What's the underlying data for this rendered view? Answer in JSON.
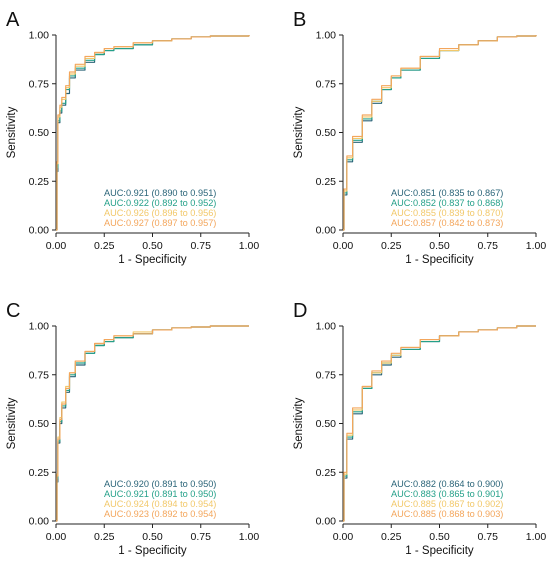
{
  "colors": {
    "series": [
      "#2a6478",
      "#24a089",
      "#f2c86a",
      "#f3a65c"
    ],
    "axis": "#222222",
    "background": "#ffffff"
  },
  "chart_data": [
    {
      "type": "line",
      "panel": "A",
      "xlabel": "1 - Specificity",
      "ylabel": "Sensitivity",
      "xlim": [
        0,
        1
      ],
      "ylim": [
        0,
        1
      ],
      "xticks": [
        "0.00",
        "0.25",
        "0.50",
        "0.75",
        "1.00"
      ],
      "yticks": [
        "0.00",
        "0.25",
        "0.50",
        "0.75",
        "1.00"
      ],
      "grid": false,
      "legend_placement": "bottom-right",
      "annotations": [
        "AUC:0.921 (0.890 to 0.951)",
        "AUC:0.922 (0.892 to 0.952)",
        "AUC:0.926 (0.896 to 0.956)",
        "AUC:0.927 (0.897 to 0.957)"
      ],
      "series": [
        {
          "x": [
            0,
            0.005,
            0.01,
            0.02,
            0.03,
            0.05,
            0.07,
            0.1,
            0.15,
            0.2,
            0.25,
            0.3,
            0.4,
            0.5,
            0.6,
            0.7,
            0.8,
            1.0
          ],
          "y": [
            0,
            0.3,
            0.55,
            0.6,
            0.64,
            0.7,
            0.78,
            0.82,
            0.86,
            0.9,
            0.92,
            0.93,
            0.95,
            0.97,
            0.98,
            0.99,
            0.995,
            1.0
          ]
        },
        {
          "x": [
            0,
            0.005,
            0.01,
            0.02,
            0.03,
            0.05,
            0.07,
            0.1,
            0.15,
            0.2,
            0.25,
            0.3,
            0.4,
            0.5,
            0.6,
            0.7,
            0.8,
            1.0
          ],
          "y": [
            0,
            0.32,
            0.56,
            0.61,
            0.65,
            0.72,
            0.79,
            0.83,
            0.87,
            0.9,
            0.92,
            0.93,
            0.95,
            0.97,
            0.98,
            0.99,
            0.995,
            1.0
          ]
        },
        {
          "x": [
            0,
            0.005,
            0.01,
            0.02,
            0.03,
            0.05,
            0.07,
            0.1,
            0.15,
            0.2,
            0.25,
            0.3,
            0.4,
            0.5,
            0.6,
            0.7,
            0.8,
            1.0
          ],
          "y": [
            0,
            0.34,
            0.58,
            0.63,
            0.67,
            0.73,
            0.8,
            0.84,
            0.88,
            0.91,
            0.93,
            0.94,
            0.96,
            0.97,
            0.98,
            0.99,
            0.995,
            1.0
          ]
        },
        {
          "x": [
            0,
            0.005,
            0.01,
            0.02,
            0.03,
            0.05,
            0.07,
            0.1,
            0.15,
            0.2,
            0.25,
            0.3,
            0.4,
            0.5,
            0.6,
            0.7,
            0.8,
            1.0
          ],
          "y": [
            0,
            0.35,
            0.59,
            0.64,
            0.68,
            0.74,
            0.81,
            0.85,
            0.89,
            0.91,
            0.93,
            0.94,
            0.96,
            0.97,
            0.98,
            0.99,
            0.995,
            1.0
          ]
        }
      ]
    },
    {
      "type": "line",
      "panel": "B",
      "xlabel": "1 - Specificity",
      "ylabel": "Sensitivity",
      "xlim": [
        0,
        1
      ],
      "ylim": [
        0,
        1
      ],
      "xticks": [
        "0.00",
        "0.25",
        "0.50",
        "0.75",
        "1.00"
      ],
      "yticks": [
        "0.00",
        "0.25",
        "0.50",
        "0.75",
        "1.00"
      ],
      "grid": false,
      "legend_placement": "bottom-right",
      "annotations": [
        "AUC:0.851 (0.835 to 0.867)",
        "AUC:0.852 (0.837 to 0.868)",
        "AUC:0.855 (0.839 to 0.870)",
        "AUC:0.857 (0.842 to 0.873)"
      ],
      "series": [
        {
          "x": [
            0,
            0.005,
            0.02,
            0.05,
            0.1,
            0.15,
            0.2,
            0.25,
            0.3,
            0.4,
            0.5,
            0.6,
            0.7,
            0.8,
            0.9,
            1.0
          ],
          "y": [
            0,
            0.18,
            0.35,
            0.45,
            0.56,
            0.65,
            0.72,
            0.78,
            0.82,
            0.88,
            0.92,
            0.95,
            0.97,
            0.99,
            0.995,
            1.0
          ]
        },
        {
          "x": [
            0,
            0.005,
            0.02,
            0.05,
            0.1,
            0.15,
            0.2,
            0.25,
            0.3,
            0.4,
            0.5,
            0.6,
            0.7,
            0.8,
            0.9,
            1.0
          ],
          "y": [
            0,
            0.19,
            0.36,
            0.46,
            0.57,
            0.66,
            0.72,
            0.78,
            0.82,
            0.88,
            0.92,
            0.95,
            0.97,
            0.99,
            0.995,
            1.0
          ]
        },
        {
          "x": [
            0,
            0.005,
            0.02,
            0.05,
            0.1,
            0.15,
            0.2,
            0.25,
            0.3,
            0.4,
            0.5,
            0.6,
            0.7,
            0.8,
            0.9,
            1.0
          ],
          "y": [
            0,
            0.2,
            0.37,
            0.47,
            0.58,
            0.66,
            0.73,
            0.79,
            0.83,
            0.89,
            0.92,
            0.95,
            0.97,
            0.99,
            0.995,
            1.0
          ]
        },
        {
          "x": [
            0,
            0.005,
            0.02,
            0.05,
            0.1,
            0.15,
            0.2,
            0.25,
            0.3,
            0.4,
            0.5,
            0.6,
            0.7,
            0.8,
            0.9,
            1.0
          ],
          "y": [
            0,
            0.21,
            0.38,
            0.48,
            0.59,
            0.67,
            0.74,
            0.79,
            0.83,
            0.89,
            0.93,
            0.95,
            0.97,
            0.99,
            0.995,
            1.0
          ]
        }
      ]
    },
    {
      "type": "line",
      "panel": "C",
      "xlabel": "1 - Specificity",
      "ylabel": "Sensitivity",
      "xlim": [
        0,
        1
      ],
      "ylim": [
        0,
        1
      ],
      "xticks": [
        "0.00",
        "0.25",
        "0.50",
        "0.75",
        "1.00"
      ],
      "yticks": [
        "0.00",
        "0.25",
        "0.50",
        "0.75",
        "1.00"
      ],
      "grid": false,
      "legend_placement": "bottom-right",
      "annotations": [
        "AUC:0.920 (0.891 to 0.950)",
        "AUC:0.921 (0.891 to 0.950)",
        "AUC:0.924 (0.894 to 0.954)",
        "AUC:0.923 (0.892 to 0.954)"
      ],
      "series": [
        {
          "x": [
            0,
            0.005,
            0.01,
            0.02,
            0.03,
            0.05,
            0.07,
            0.1,
            0.15,
            0.2,
            0.25,
            0.3,
            0.4,
            0.5,
            0.6,
            0.7,
            0.8,
            1.0
          ],
          "y": [
            0,
            0.2,
            0.4,
            0.5,
            0.58,
            0.66,
            0.74,
            0.8,
            0.86,
            0.9,
            0.92,
            0.94,
            0.96,
            0.98,
            0.99,
            0.995,
            1.0,
            1.0
          ]
        },
        {
          "x": [
            0,
            0.005,
            0.01,
            0.02,
            0.03,
            0.05,
            0.07,
            0.1,
            0.15,
            0.2,
            0.25,
            0.3,
            0.4,
            0.5,
            0.6,
            0.7,
            0.8,
            1.0
          ],
          "y": [
            0,
            0.22,
            0.41,
            0.51,
            0.59,
            0.67,
            0.75,
            0.81,
            0.86,
            0.9,
            0.92,
            0.94,
            0.96,
            0.98,
            0.99,
            0.995,
            1.0,
            1.0
          ]
        },
        {
          "x": [
            0,
            0.005,
            0.01,
            0.02,
            0.03,
            0.05,
            0.07,
            0.1,
            0.15,
            0.2,
            0.25,
            0.3,
            0.4,
            0.5,
            0.6,
            0.7,
            0.8,
            1.0
          ],
          "y": [
            0,
            0.24,
            0.43,
            0.53,
            0.61,
            0.69,
            0.76,
            0.82,
            0.87,
            0.91,
            0.93,
            0.95,
            0.97,
            0.98,
            0.99,
            0.995,
            1.0,
            1.0
          ]
        },
        {
          "x": [
            0,
            0.005,
            0.01,
            0.02,
            0.03,
            0.05,
            0.07,
            0.1,
            0.15,
            0.2,
            0.25,
            0.3,
            0.4,
            0.5,
            0.6,
            0.7,
            0.8,
            1.0
          ],
          "y": [
            0,
            0.23,
            0.42,
            0.52,
            0.6,
            0.68,
            0.76,
            0.82,
            0.87,
            0.91,
            0.93,
            0.95,
            0.96,
            0.98,
            0.99,
            0.995,
            1.0,
            1.0
          ]
        }
      ]
    },
    {
      "type": "line",
      "panel": "D",
      "xlabel": "1 - Specificity",
      "ylabel": "Sensitivity",
      "xlim": [
        0,
        1
      ],
      "ylim": [
        0,
        1
      ],
      "xticks": [
        "0.00",
        "0.25",
        "0.50",
        "0.75",
        "1.00"
      ],
      "yticks": [
        "0.00",
        "0.25",
        "0.50",
        "0.75",
        "1.00"
      ],
      "grid": false,
      "legend_placement": "bottom-right",
      "annotations": [
        "AUC:0.882 (0.864 to 0.900)",
        "AUC:0.883 (0.865 to 0.901)",
        "AUC:0.885 (0.867 to 0.902)",
        "AUC:0.885 (0.868 to 0.903)"
      ],
      "series": [
        {
          "x": [
            0,
            0.005,
            0.02,
            0.05,
            0.1,
            0.15,
            0.2,
            0.25,
            0.3,
            0.4,
            0.5,
            0.6,
            0.7,
            0.8,
            0.9,
            1.0
          ],
          "y": [
            0,
            0.22,
            0.42,
            0.55,
            0.68,
            0.75,
            0.8,
            0.84,
            0.88,
            0.92,
            0.95,
            0.97,
            0.98,
            0.99,
            1.0,
            1.0
          ]
        },
        {
          "x": [
            0,
            0.005,
            0.02,
            0.05,
            0.1,
            0.15,
            0.2,
            0.25,
            0.3,
            0.4,
            0.5,
            0.6,
            0.7,
            0.8,
            0.9,
            1.0
          ],
          "y": [
            0,
            0.23,
            0.43,
            0.56,
            0.68,
            0.76,
            0.81,
            0.85,
            0.88,
            0.92,
            0.95,
            0.97,
            0.98,
            0.99,
            1.0,
            1.0
          ]
        },
        {
          "x": [
            0,
            0.005,
            0.02,
            0.05,
            0.1,
            0.15,
            0.2,
            0.25,
            0.3,
            0.4,
            0.5,
            0.6,
            0.7,
            0.8,
            0.9,
            1.0
          ],
          "y": [
            0,
            0.24,
            0.44,
            0.57,
            0.69,
            0.76,
            0.81,
            0.85,
            0.89,
            0.93,
            0.95,
            0.97,
            0.98,
            0.99,
            1.0,
            1.0
          ]
        },
        {
          "x": [
            0,
            0.005,
            0.02,
            0.05,
            0.1,
            0.15,
            0.2,
            0.25,
            0.3,
            0.4,
            0.5,
            0.6,
            0.7,
            0.8,
            0.9,
            1.0
          ],
          "y": [
            0,
            0.25,
            0.45,
            0.58,
            0.69,
            0.77,
            0.82,
            0.86,
            0.89,
            0.93,
            0.95,
            0.97,
            0.98,
            0.99,
            1.0,
            1.0
          ]
        }
      ]
    }
  ]
}
